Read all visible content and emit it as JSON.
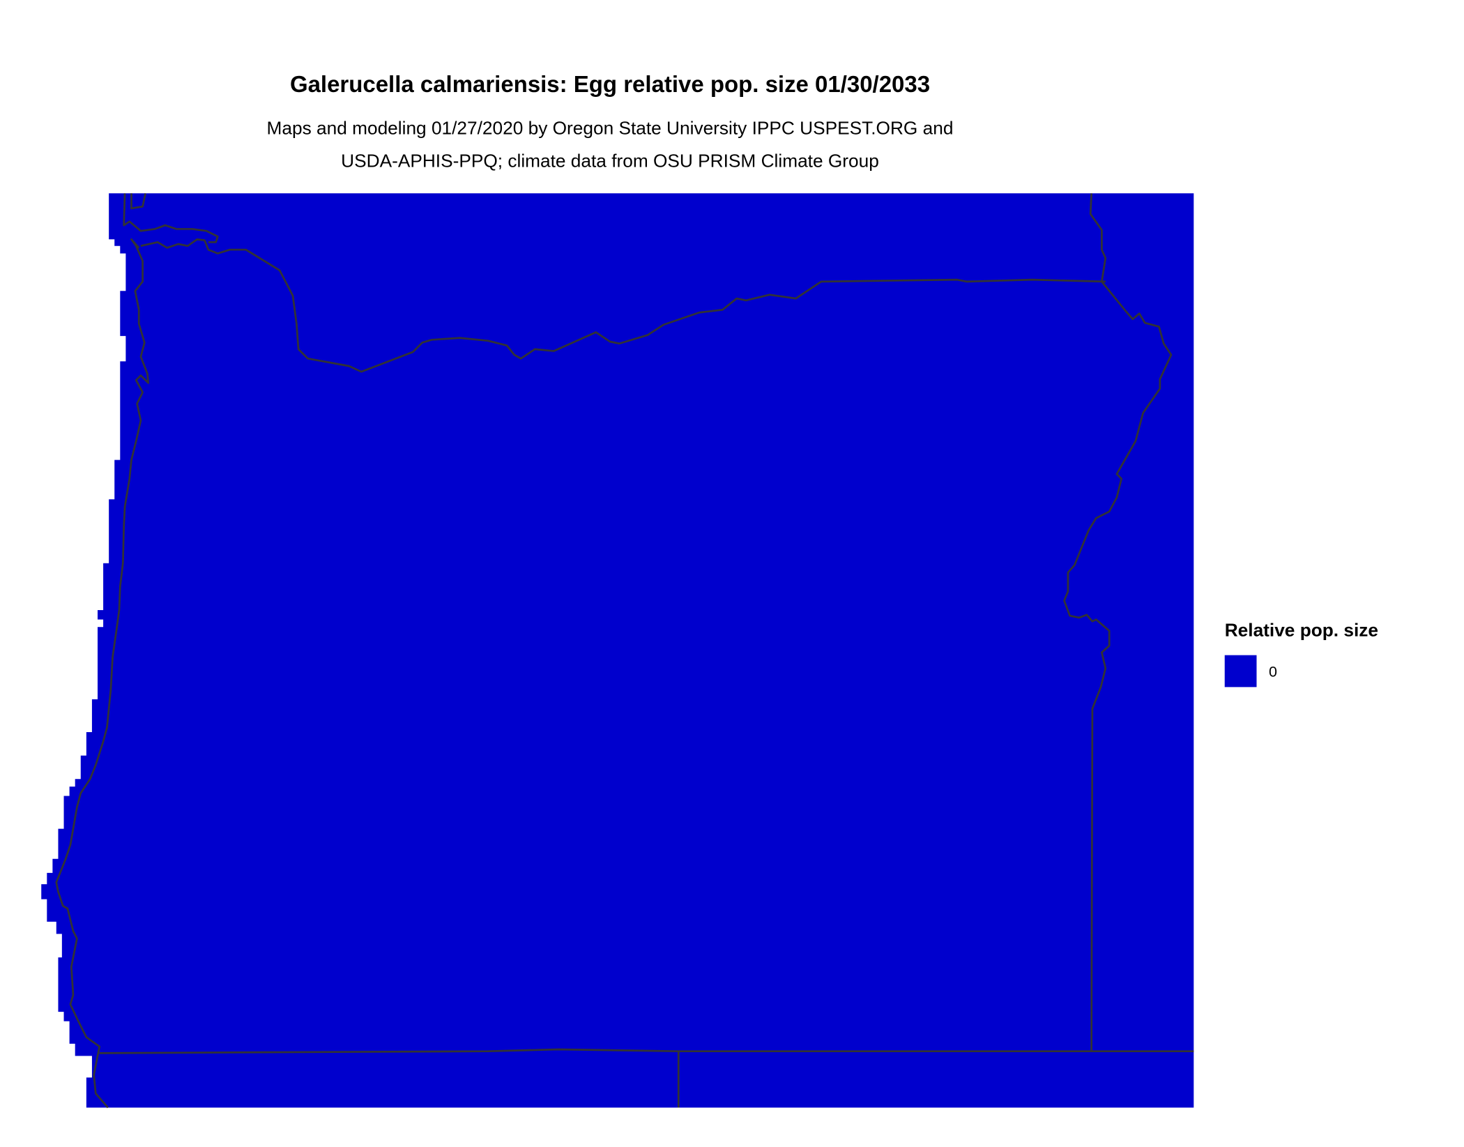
{
  "title": "Galerucella calmariensis: Egg relative pop. size 01/30/2033",
  "subtitle_line1": "Maps and modeling 01/27/2020 by Oregon State University IPPC USPEST.ORG and",
  "subtitle_line2": "USDA-APHIS-PPQ; climate data from OSU PRISM Climate Group",
  "legend": {
    "title": "Relative pop. size",
    "items": [
      {
        "label": "0",
        "color": "#0000CD"
      }
    ]
  },
  "map": {
    "fill_color": "#0000CD",
    "border_color": "#333333",
    "region": "Oregon and surrounding states"
  }
}
